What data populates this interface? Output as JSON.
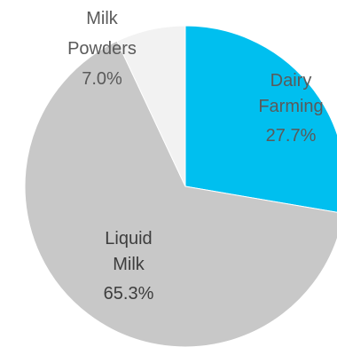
{
  "chart_data": {
    "type": "pie",
    "slices": [
      {
        "label_lines": [
          "Dairy",
          "Farming"
        ],
        "value_label": "27.7%",
        "value": 27.7,
        "color": "#00BFEF",
        "text_color": "#5a5a5a"
      },
      {
        "label_lines": [
          "Liquid",
          "Milk"
        ],
        "value_label": "65.3%",
        "value": 65.3,
        "color": "#C8C8C8",
        "text_color": "#3d3d3d"
      },
      {
        "label_lines": [
          "Milk",
          "Powders"
        ],
        "value_label": "7.0%",
        "value": 7.0,
        "color": "#F2F2F2",
        "text_color": "#5a5a5a"
      }
    ]
  }
}
